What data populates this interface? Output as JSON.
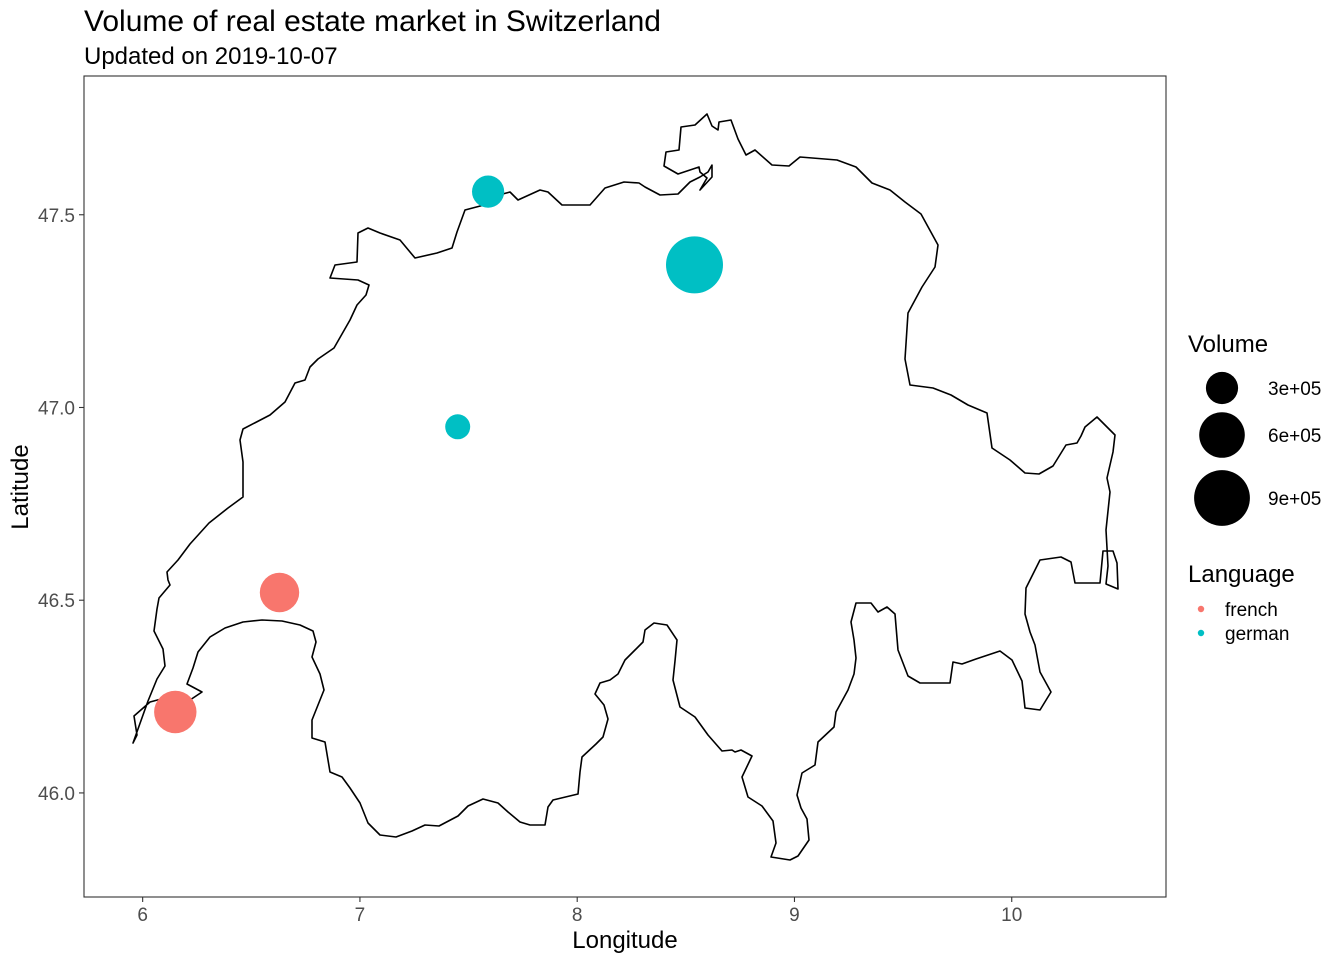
{
  "chart_data": {
    "type": "scatter",
    "title": "Volume of real estate market in Switzerland",
    "subtitle": "Updated on 2019-10-07",
    "xlabel": "Longitude",
    "ylabel": "Latitude",
    "xlim": [
      5.73,
      10.71
    ],
    "ylim": [
      45.73,
      47.86
    ],
    "x_ticks": [
      6,
      7,
      8,
      9,
      10
    ],
    "x_tick_labels": [
      "6",
      "7",
      "8",
      "9",
      "10"
    ],
    "y_ticks": [
      46.0,
      46.5,
      47.0,
      47.5
    ],
    "y_tick_labels": [
      "46.0",
      "46.5",
      "47.0",
      "47.5"
    ],
    "grid": false,
    "legend_placement": "right",
    "size_legend": {
      "title": "Volume",
      "entries": [
        {
          "label": "3e+05",
          "value": 300000
        },
        {
          "label": "6e+05",
          "value": 600000
        },
        {
          "label": "9e+05",
          "value": 900000
        }
      ]
    },
    "color_legend": {
      "title": "Language",
      "entries": [
        {
          "label": "french",
          "color": "#F8766D"
        },
        {
          "label": "german",
          "color": "#00BFC4"
        }
      ]
    },
    "series": [
      {
        "name": "french",
        "color": "#F8766D",
        "points": [
          {
            "x": 6.15,
            "y": 46.21,
            "volume": 520000
          },
          {
            "x": 6.63,
            "y": 46.52,
            "volume": 450000
          }
        ]
      },
      {
        "name": "german",
        "color": "#00BFC4",
        "points": [
          {
            "x": 7.59,
            "y": 47.56,
            "volume": 300000
          },
          {
            "x": 8.54,
            "y": 47.37,
            "volume": 940000
          },
          {
            "x": 7.45,
            "y": 46.95,
            "volume": 180000
          }
        ]
      }
    ]
  }
}
